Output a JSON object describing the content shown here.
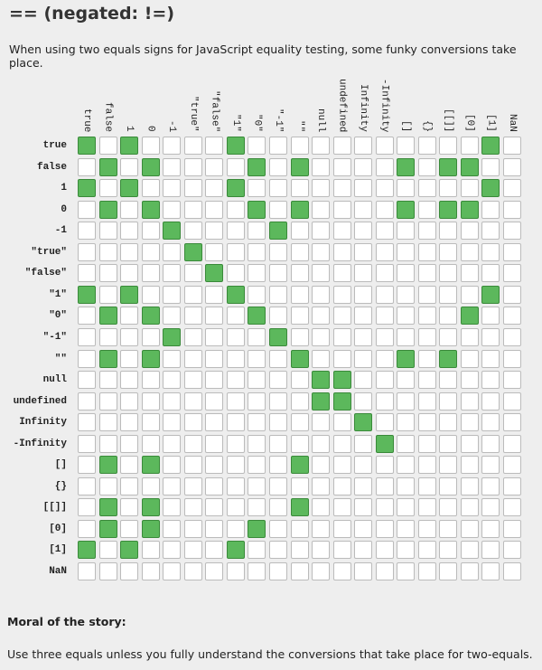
{
  "title": "== (negated: !=)",
  "intro": "When using two equals signs for JavaScript equality testing, some funky conversions take place.",
  "labels": [
    "true",
    "false",
    "1",
    "0",
    "-1",
    "\"true\"",
    "\"false\"",
    "\"1\"",
    "\"0\"",
    "\"-1\"",
    "\"\"",
    "null",
    "undefined",
    "Infinity",
    "-Infinity",
    "[]",
    "{}",
    "[[]]",
    "[0]",
    "[1]",
    "NaN"
  ],
  "equal_pairs": {
    "true": [
      "true",
      "1",
      "\"1\"",
      "[1]"
    ],
    "false": [
      "false",
      "0",
      "\"0\"",
      "\"\"",
      "[]",
      "[[]]",
      "[0]"
    ],
    "1": [
      "true",
      "1",
      "\"1\"",
      "[1]"
    ],
    "0": [
      "false",
      "0",
      "\"0\"",
      "\"\"",
      "[]",
      "[[]]",
      "[0]"
    ],
    "-1": [
      "-1",
      "\"-1\""
    ],
    "\"true\"": [
      "\"true\""
    ],
    "\"false\"": [
      "\"false\""
    ],
    "\"1\"": [
      "true",
      "1",
      "\"1\"",
      "[1]"
    ],
    "\"0\"": [
      "false",
      "0",
      "\"0\"",
      "[0]"
    ],
    "\"-1\"": [
      "-1",
      "\"-1\""
    ],
    "\"\"": [
      "false",
      "0",
      "\"\"",
      "[]",
      "[[]]"
    ],
    "null": [
      "null",
      "undefined"
    ],
    "undefined": [
      "null",
      "undefined"
    ],
    "Infinity": [
      "Infinity"
    ],
    "-Infinity": [
      "-Infinity"
    ],
    "[]": [
      "false",
      "0",
      "\"\""
    ],
    "{}": [],
    "[[]]": [
      "false",
      "0",
      "\"\""
    ],
    "[0]": [
      "false",
      "0",
      "\"0\""
    ],
    "[1]": [
      "true",
      "1",
      "\"1\""
    ],
    "NaN": []
  },
  "colors": {
    "equal": "#5cb85c",
    "not_equal": "#ffffff"
  },
  "moral_heading": "Moral of the story:",
  "moral_text": "Use three equals unless you fully understand the conversions that take place for two-equals."
}
